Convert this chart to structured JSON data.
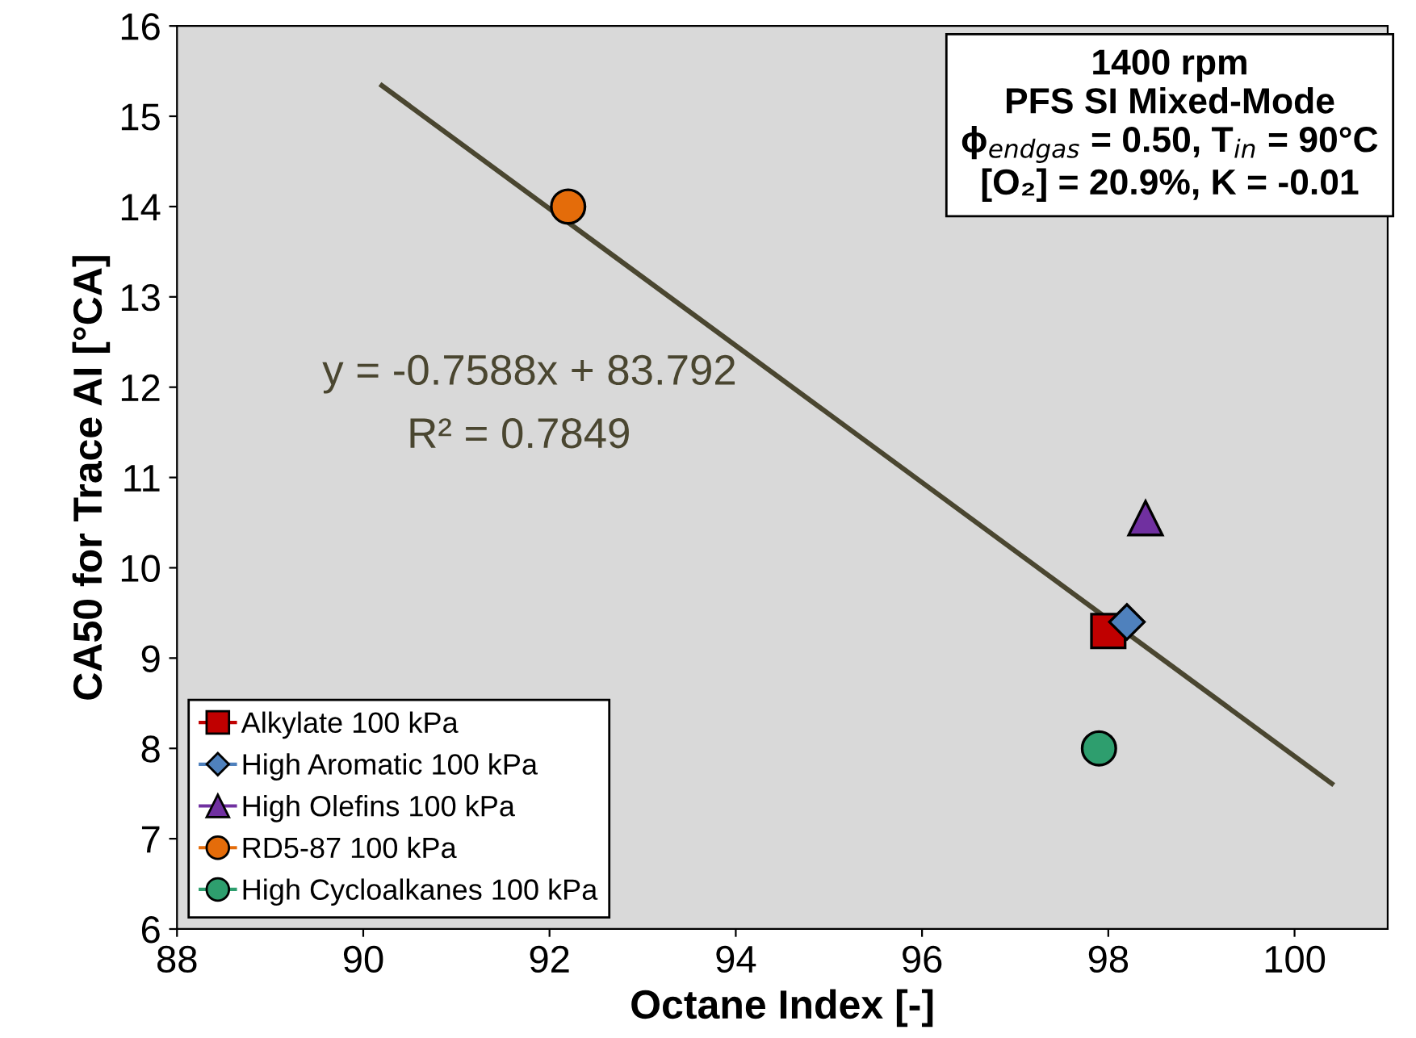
{
  "chart_data": {
    "type": "scatter",
    "xlabel": "Octane Index [-]",
    "ylabel": "CA50 for Trace AI [°CA]",
    "xlim": [
      88,
      101
    ],
    "xticks": [
      88,
      90,
      92,
      94,
      96,
      98,
      100
    ],
    "ylim": [
      6,
      16
    ],
    "yticks": [
      6,
      7,
      8,
      9,
      10,
      11,
      12,
      13,
      14,
      15,
      16
    ],
    "grid": false,
    "legend": "bottom left",
    "series": [
      {
        "type": "line",
        "x": [
          90.2,
          100.4
        ],
        "values": [
          15.34,
          7.61
        ],
        "color": "#4a4630",
        "marker": "none",
        "line_style": "solid"
      },
      {
        "name": "Alkylate 100 kPa",
        "x": [
          98.0
        ],
        "values": [
          9.3
        ],
        "color": "#c00000",
        "marker": "square"
      },
      {
        "name": "High Aromatic 100 kPa",
        "x": [
          98.2
        ],
        "values": [
          9.4
        ],
        "color": "#4f81bd",
        "marker": "diamond"
      },
      {
        "name": "High Olefins 100 kPa",
        "x": [
          98.4
        ],
        "values": [
          10.55
        ],
        "color": "#7030a0",
        "marker": "triangle"
      },
      {
        "name": "RD5-87 100 kPa",
        "x": [
          92.2
        ],
        "values": [
          14.0
        ],
        "color": "#e46c0a",
        "marker": "circle"
      },
      {
        "name": "High Cycloalkanes 100 kPa",
        "x": [
          97.9
        ],
        "values": [
          8.0
        ],
        "color": "#2e9e6e",
        "marker": "circle"
      }
    ],
    "annotations": [
      "y = -0.7588x + 83.792",
      "R² = 0.7849",
      "1400 rpm\nPFS SI Mixed-Mode\nϕ$_{endgas}$ = 0.50, T$_{in}$ = 90°C\n[O₂] = 20.9%, K = -0.01"
    ]
  }
}
